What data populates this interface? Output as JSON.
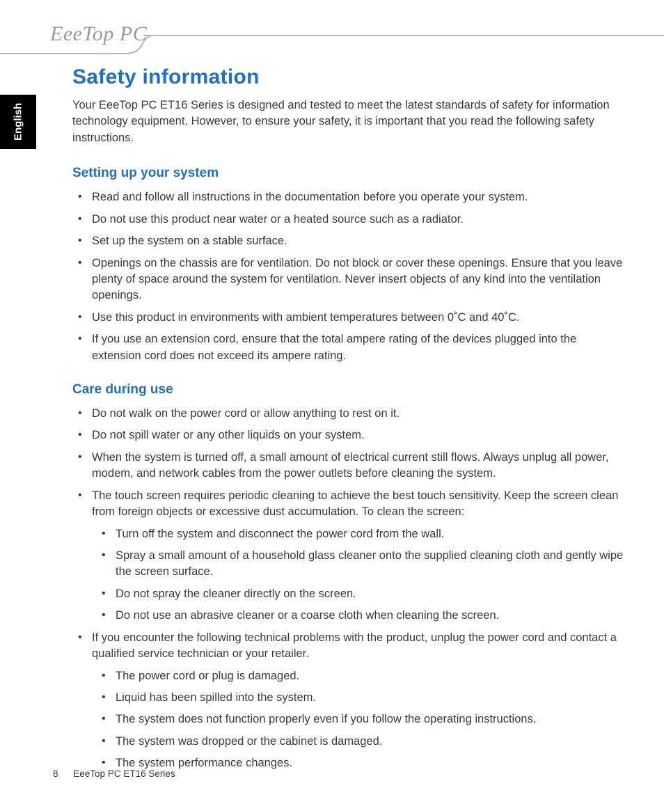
{
  "brand": "EeeTop PC",
  "language_tab": "English",
  "title": "Safety information",
  "intro": "Your EeeTop PC ET16 Series is designed and tested to meet the latest standards of safety for information technology equipment. However, to ensure your safety, it is important that you read the following safety instructions.",
  "section1": {
    "heading": "Setting up your system",
    "items": [
      "Read and follow all instructions in the documentation before you operate your system.",
      "Do not use this product near water or a heated source such as a radiator.",
      "Set up the system on a stable surface.",
      "Openings on the chassis are for ventilation. Do not block or cover these openings. Ensure that you leave plenty of space around the system for ventilation. Never insert objects of any kind into the ventilation openings.",
      "Use this product in environments with ambient temperatures between 0˚C and 40˚C.",
      "If you use an extension cord, ensure that the total ampere rating of the devices plugged into the extension cord does not exceed its ampere rating."
    ]
  },
  "section2": {
    "heading": "Care during use",
    "items": [
      {
        "text": "Do not walk on the power cord or allow anything to rest on it."
      },
      {
        "text": "Do not spill water or any other liquids on your system."
      },
      {
        "text": "When the system is turned off, a small amount of electrical current still flows. Always unplug all power, modem, and network cables from the power outlets before cleaning the system."
      },
      {
        "text": "The touch screen requires periodic cleaning to achieve the best touch sensitivity. Keep the screen clean from foreign objects or excessive dust accumulation. To clean the screen:",
        "sub": [
          "Turn off the system and disconnect the power cord from the wall.",
          "Spray a small amount of a household glass cleaner onto the supplied cleaning cloth and gently wipe the screen surface.",
          "Do not spray the cleaner directly on the screen.",
          "Do not use an abrasive cleaner or a coarse cloth when cleaning the screen."
        ]
      },
      {
        "text": "If you encounter the following technical problems with the product, unplug the power cord and contact a qualified service technician or your retailer.",
        "sub": [
          "The power cord or plug is damaged.",
          "Liquid has been spilled into the system.",
          "The system does not function properly even if you follow the operating instructions.",
          "The system was dropped or the cabinet is damaged.",
          "The system performance changes."
        ]
      }
    ]
  },
  "footer": {
    "page": "8",
    "product": "EeeTop PC ET16 Series"
  },
  "colors": {
    "heading_blue": "#1f71c0",
    "body_text": "#3a3a3a",
    "rule_gray": "#b8b8b8",
    "tab_bg": "#000000",
    "tab_fg": "#ffffff",
    "page_bg": "#ffffff",
    "brand_gray": "#9a9a9a"
  },
  "typography": {
    "h1_size_pt": 22,
    "h2_size_pt": 14,
    "body_size_pt": 12,
    "footer_size_pt": 10
  }
}
